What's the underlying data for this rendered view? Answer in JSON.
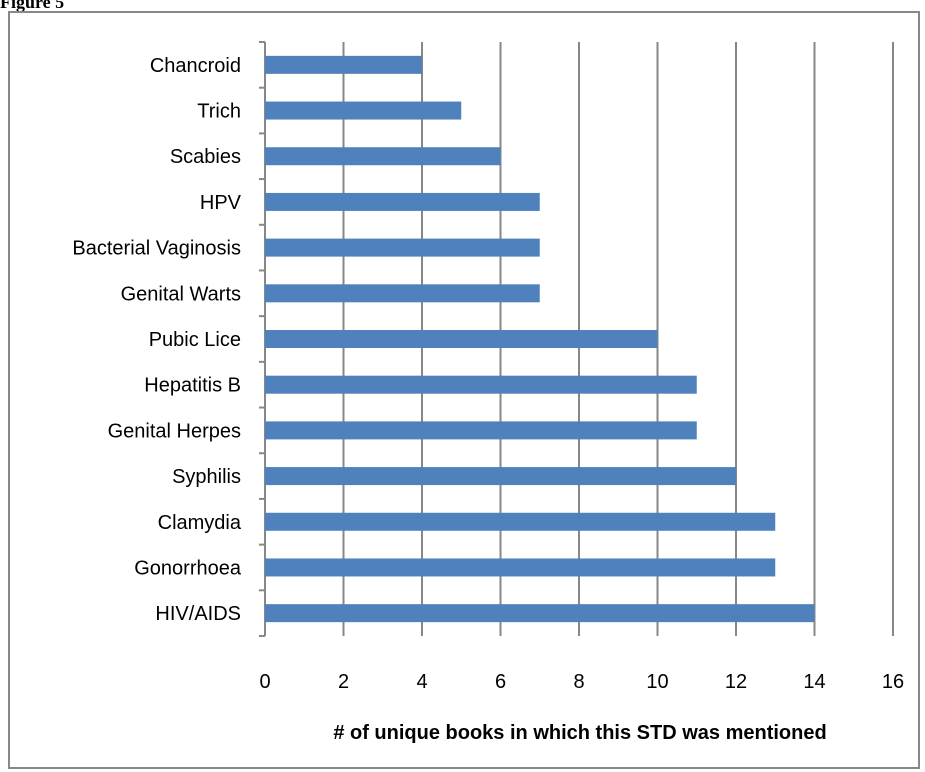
{
  "figure_label": "Figure 5",
  "chart_data": {
    "type": "bar",
    "orientation": "horizontal",
    "categories": [
      "Chancroid",
      "Trich",
      "Scabies",
      "HPV",
      "Bacterial Vaginosis",
      "Genital Warts",
      "Pubic Lice",
      "Hepatitis B",
      "Genital Herpes",
      "Syphilis",
      "Clamydia",
      "Gonorrhoea",
      "HIV/AIDS"
    ],
    "values": [
      4,
      5,
      6,
      7,
      7,
      7,
      10,
      11,
      11,
      12,
      13,
      13,
      14
    ],
    "xlabel": "# of unique books in which this STD was mentioned",
    "ylabel": "",
    "xlim": [
      0,
      16
    ],
    "xticks": [
      "0",
      "2",
      "4",
      "6",
      "8",
      "10",
      "12",
      "14",
      "16"
    ],
    "grid": "vertical",
    "legend": "none",
    "bar_color": "#4F81BD",
    "grid_color": "#878787"
  }
}
